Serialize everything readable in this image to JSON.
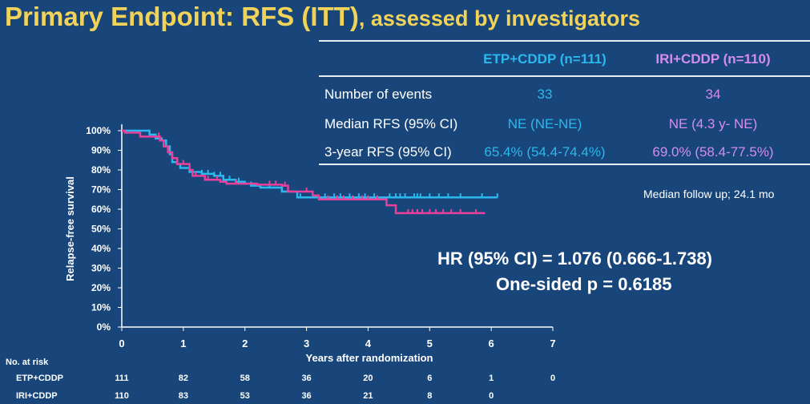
{
  "title": {
    "main": "Primary Endpoint: RFS (ITT)",
    "sub": ", assessed by investigators"
  },
  "colors": {
    "background": "#18467a",
    "title": "#f2d35a",
    "etp": "#2bb8ee",
    "iri": "#e8409b",
    "iri_text": "#d58cec"
  },
  "table": {
    "headers": [
      "ETP+CDDP (n=111)",
      "IRI+CDDP (n=110)"
    ],
    "rows": [
      {
        "label": "Number of events",
        "etp": "33",
        "iri": "34"
      },
      {
        "label": "Median RFS (95% CI)",
        "etp": "NE (NE-NE)",
        "iri": "NE (4.3 y- NE)"
      },
      {
        "label": "3-year RFS (95% CI)",
        "etp": "65.4% (54.4-74.4%)",
        "iri": "69.0% (58.4-77.5%)"
      }
    ]
  },
  "follow_up": "Median follow up; 24.1 mo",
  "hr_text": "HR (95% CI) = 1.076 (0.666-1.738)",
  "p_text": "One-sided p = 0.6185",
  "risk_table": {
    "title": "No. at risk",
    "rows": [
      {
        "label": "ETP+CDDP",
        "values": [
          "111",
          "82",
          "58",
          "36",
          "20",
          "6",
          "1",
          "0"
        ]
      },
      {
        "label": "IRI+CDDP",
        "values": [
          "110",
          "83",
          "53",
          "36",
          "21",
          "8",
          "0",
          ""
        ]
      }
    ]
  },
  "chart_data": {
    "type": "line",
    "xlabel": "Years after randomization",
    "ylabel": "Relapse-free survival",
    "xlim": [
      0,
      7
    ],
    "ylim": [
      0,
      100
    ],
    "xticks": [
      "0",
      "1",
      "2",
      "3",
      "4",
      "5",
      "6",
      "7"
    ],
    "yticks": [
      "0%",
      "10%",
      "20%",
      "30%",
      "40%",
      "50%",
      "60%",
      "70%",
      "80%",
      "90%",
      "100%"
    ],
    "series": [
      {
        "name": "ETP+CDDP",
        "color": "#2bb8ee",
        "steps": [
          [
            0,
            100
          ],
          [
            0.4,
            100
          ],
          [
            0.45,
            98
          ],
          [
            0.55,
            96
          ],
          [
            0.65,
            95
          ],
          [
            0.72,
            92
          ],
          [
            0.78,
            88
          ],
          [
            0.82,
            84
          ],
          [
            0.9,
            83
          ],
          [
            0.95,
            81
          ],
          [
            1.1,
            79
          ],
          [
            1.3,
            78
          ],
          [
            1.5,
            77
          ],
          [
            1.65,
            75
          ],
          [
            1.85,
            74
          ],
          [
            2.0,
            73
          ],
          [
            2.1,
            72
          ],
          [
            2.25,
            71
          ],
          [
            2.6,
            69
          ],
          [
            2.85,
            66
          ],
          [
            6.1,
            66
          ]
        ],
        "censored": [
          1.3,
          1.4,
          1.5,
          1.6,
          1.75,
          1.9,
          2.1,
          2.4,
          2.9,
          3.3,
          3.45,
          3.55,
          3.7,
          3.85,
          3.95,
          4.1,
          4.35,
          4.45,
          4.52,
          4.6,
          4.75,
          4.8,
          4.85,
          5.0,
          5.15,
          5.3,
          5.5,
          5.85,
          6.1
        ]
      },
      {
        "name": "IRI+CDDP",
        "color": "#e8409b",
        "steps": [
          [
            0,
            100
          ],
          [
            0.05,
            99
          ],
          [
            0.25,
            99
          ],
          [
            0.3,
            97
          ],
          [
            0.6,
            97
          ],
          [
            0.62,
            95
          ],
          [
            0.68,
            92
          ],
          [
            0.75,
            89
          ],
          [
            0.82,
            86
          ],
          [
            0.9,
            83
          ],
          [
            1.1,
            80
          ],
          [
            1.15,
            77
          ],
          [
            1.35,
            75
          ],
          [
            1.6,
            74
          ],
          [
            1.7,
            73
          ],
          [
            2.2,
            72.5
          ],
          [
            2.6,
            72
          ],
          [
            2.7,
            69
          ],
          [
            3.1,
            67
          ],
          [
            3.2,
            65
          ],
          [
            4.3,
            62
          ],
          [
            4.45,
            58
          ],
          [
            5.9,
            58
          ]
        ],
        "censored": [
          0.6,
          1.0,
          1.2,
          1.4,
          1.55,
          1.85,
          2.4,
          2.5,
          2.65,
          3.0,
          3.35,
          3.5,
          3.6,
          3.75,
          3.9,
          4.0,
          4.15,
          4.65,
          4.72,
          4.8,
          4.88,
          5.0,
          5.1,
          5.22,
          5.35,
          5.5,
          5.75
        ]
      }
    ]
  }
}
